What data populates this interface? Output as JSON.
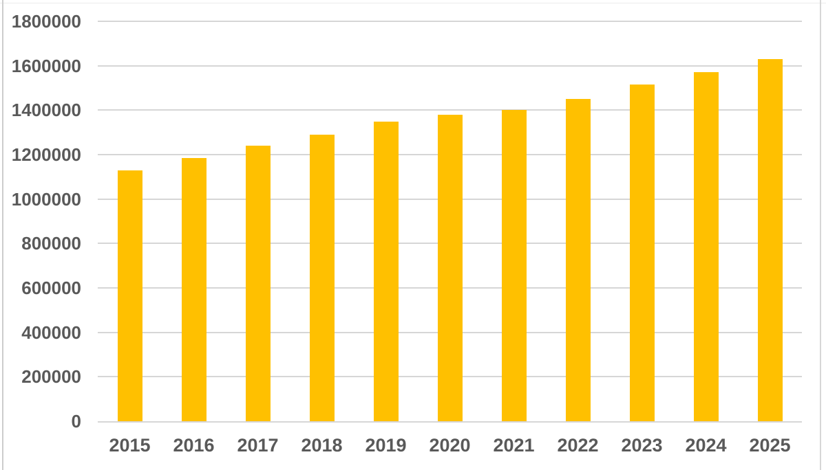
{
  "chart_data": {
    "type": "bar",
    "title": "",
    "xlabel": "",
    "ylabel": "",
    "categories": [
      "2015",
      "2016",
      "2017",
      "2018",
      "2019",
      "2020",
      "2021",
      "2022",
      "2023",
      "2024",
      "2025"
    ],
    "values": [
      1130000,
      1185000,
      1240000,
      1290000,
      1350000,
      1380000,
      1400000,
      1450000,
      1515000,
      1570000,
      1630000
    ],
    "ylim": [
      0,
      1800000
    ],
    "ytick_step": 200000,
    "yticks": [
      0,
      200000,
      400000,
      600000,
      800000,
      1000000,
      1200000,
      1400000,
      1600000,
      1800000
    ],
    "ytick_labels": [
      "0",
      "200000",
      "400000",
      "600000",
      "800000",
      "1000000",
      "1200000",
      "1400000",
      "1600000",
      "1800000"
    ],
    "grid": true,
    "legend": false,
    "colors": {
      "bar": "#FFC000",
      "gridline": "#d6d6d6",
      "axis_labels": "#595959",
      "background": "#ffffff"
    }
  }
}
